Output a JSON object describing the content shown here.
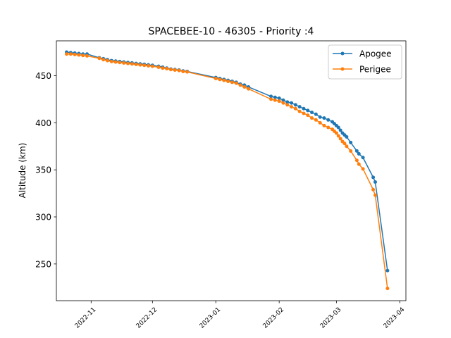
{
  "chart_data": {
    "type": "line",
    "title": "SPACEBEE-10 - 46305 - Priority :4",
    "xlabel": "",
    "ylabel": "Altitude (km)",
    "xlim": [
      "2022-10-15",
      "2023-04-04"
    ],
    "ylim": [
      211,
      487
    ],
    "x_ticks": [
      "2022-11",
      "2022-12",
      "2023-01",
      "2023-02",
      "2023-03",
      "2023-04"
    ],
    "y_ticks": [
      250,
      300,
      350,
      400,
      450
    ],
    "legend": "top-right",
    "grid": false,
    "series": [
      {
        "name": "Apogee",
        "color": "#1f77b4",
        "points": [
          [
            "2022-10-20",
            475
          ],
          [
            "2022-10-22",
            474.5
          ],
          [
            "2022-10-24",
            474
          ],
          [
            "2022-10-26",
            473.5
          ],
          [
            "2022-10-28",
            473
          ],
          [
            "2022-10-30",
            473
          ],
          [
            "2022-11-05",
            469
          ],
          [
            "2022-11-07",
            468
          ],
          [
            "2022-11-09",
            467
          ],
          [
            "2022-11-11",
            466
          ],
          [
            "2022-11-13",
            465.5
          ],
          [
            "2022-11-15",
            465
          ],
          [
            "2022-11-17",
            464.5
          ],
          [
            "2022-11-19",
            464
          ],
          [
            "2022-11-21",
            463.5
          ],
          [
            "2022-11-23",
            463
          ],
          [
            "2022-11-25",
            462.5
          ],
          [
            "2022-11-27",
            462
          ],
          [
            "2022-11-29",
            461.5
          ],
          [
            "2022-12-01",
            461
          ],
          [
            "2022-12-04",
            460
          ],
          [
            "2022-12-06",
            459
          ],
          [
            "2022-12-08",
            458
          ],
          [
            "2022-12-10",
            457
          ],
          [
            "2022-12-12",
            456.5
          ],
          [
            "2022-12-14",
            456
          ],
          [
            "2022-12-16",
            455
          ],
          [
            "2022-12-18",
            454.5
          ],
          [
            "2023-01-01",
            448
          ],
          [
            "2023-01-03",
            447
          ],
          [
            "2023-01-05",
            446
          ],
          [
            "2023-01-07",
            445
          ],
          [
            "2023-01-09",
            444
          ],
          [
            "2023-01-11",
            443
          ],
          [
            "2023-01-13",
            441
          ],
          [
            "2023-01-15",
            440
          ],
          [
            "2023-01-17",
            438
          ],
          [
            "2023-01-28",
            428
          ],
          [
            "2023-01-30",
            427
          ],
          [
            "2023-02-01",
            426
          ],
          [
            "2023-02-03",
            424
          ],
          [
            "2023-02-05",
            422
          ],
          [
            "2023-02-07",
            421
          ],
          [
            "2023-02-09",
            419
          ],
          [
            "2023-02-11",
            417
          ],
          [
            "2023-02-13",
            415
          ],
          [
            "2023-02-15",
            413
          ],
          [
            "2023-02-17",
            411
          ],
          [
            "2023-02-19",
            409
          ],
          [
            "2023-02-21",
            406
          ],
          [
            "2023-02-23",
            405
          ],
          [
            "2023-02-25",
            403
          ],
          [
            "2023-02-27",
            401
          ],
          [
            "2023-02-28",
            399
          ],
          [
            "2023-03-01",
            397
          ],
          [
            "2023-03-02",
            395
          ],
          [
            "2023-03-03",
            392
          ],
          [
            "2023-03-04",
            389
          ],
          [
            "2023-03-05",
            387
          ],
          [
            "2023-03-06",
            385
          ],
          [
            "2023-03-08",
            379
          ],
          [
            "2023-03-11",
            370
          ],
          [
            "2023-03-12",
            367
          ],
          [
            "2023-03-14",
            363
          ],
          [
            "2023-03-19",
            342
          ],
          [
            "2023-03-20",
            337
          ],
          [
            "2023-03-26",
            243
          ]
        ]
      },
      {
        "name": "Perigee",
        "color": "#ff7f0e",
        "points": [
          [
            "2022-10-20",
            473
          ],
          [
            "2022-10-22",
            473
          ],
          [
            "2022-10-24",
            472.5
          ],
          [
            "2022-10-26",
            472
          ],
          [
            "2022-10-28",
            471.5
          ],
          [
            "2022-10-30",
            471
          ],
          [
            "2022-11-05",
            468.5
          ],
          [
            "2022-11-07",
            467
          ],
          [
            "2022-11-09",
            466
          ],
          [
            "2022-11-11",
            465
          ],
          [
            "2022-11-13",
            464.5
          ],
          [
            "2022-11-15",
            464
          ],
          [
            "2022-11-17",
            463.5
          ],
          [
            "2022-11-19",
            463
          ],
          [
            "2022-11-21",
            462.5
          ],
          [
            "2022-11-23",
            462
          ],
          [
            "2022-11-25",
            461.5
          ],
          [
            "2022-11-27",
            461
          ],
          [
            "2022-11-29",
            460.5
          ],
          [
            "2022-12-01",
            460
          ],
          [
            "2022-12-04",
            459
          ],
          [
            "2022-12-06",
            458
          ],
          [
            "2022-12-08",
            457.5
          ],
          [
            "2022-12-10",
            456.5
          ],
          [
            "2022-12-12",
            456
          ],
          [
            "2022-12-14",
            455.5
          ],
          [
            "2022-12-16",
            454.5
          ],
          [
            "2022-12-18",
            454
          ],
          [
            "2023-01-01",
            447
          ],
          [
            "2023-01-03",
            446
          ],
          [
            "2023-01-05",
            445
          ],
          [
            "2023-01-07",
            444
          ],
          [
            "2023-01-09",
            443
          ],
          [
            "2023-01-11",
            442
          ],
          [
            "2023-01-13",
            440
          ],
          [
            "2023-01-15",
            438
          ],
          [
            "2023-01-17",
            436
          ],
          [
            "2023-01-28",
            425
          ],
          [
            "2023-01-30",
            424
          ],
          [
            "2023-02-01",
            423
          ],
          [
            "2023-02-03",
            421
          ],
          [
            "2023-02-05",
            419
          ],
          [
            "2023-02-07",
            417
          ],
          [
            "2023-02-09",
            415
          ],
          [
            "2023-02-11",
            412
          ],
          [
            "2023-02-13",
            410
          ],
          [
            "2023-02-15",
            408
          ],
          [
            "2023-02-17",
            405
          ],
          [
            "2023-02-19",
            403
          ],
          [
            "2023-02-21",
            400
          ],
          [
            "2023-02-23",
            397
          ],
          [
            "2023-02-25",
            395
          ],
          [
            "2023-02-27",
            393
          ],
          [
            "2023-02-28",
            391
          ],
          [
            "2023-03-01",
            389
          ],
          [
            "2023-03-02",
            386
          ],
          [
            "2023-03-03",
            383
          ],
          [
            "2023-03-04",
            380
          ],
          [
            "2023-03-05",
            378
          ],
          [
            "2023-03-06",
            375
          ],
          [
            "2023-03-08",
            370
          ],
          [
            "2023-03-11",
            360
          ],
          [
            "2023-03-12",
            356
          ],
          [
            "2023-03-14",
            351
          ],
          [
            "2023-03-19",
            329
          ],
          [
            "2023-03-20",
            323
          ],
          [
            "2023-03-26",
            224
          ]
        ]
      }
    ]
  }
}
